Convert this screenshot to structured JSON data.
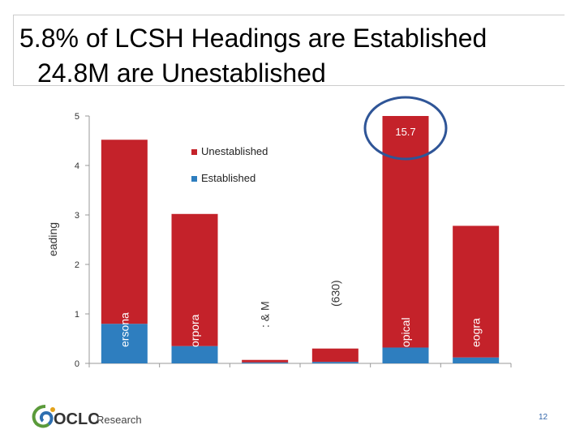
{
  "slide": {
    "title_line_1": "5.8% of LCSH Headings are Established",
    "title_line_2": "24.8M are Unestablished",
    "page_number": "12"
  },
  "logo": {
    "name": "OCLC",
    "suffix": "Research",
    "mark_icon": "oclc-swirl-icon"
  },
  "chart_data": {
    "type": "bar",
    "stacked": true,
    "categories": [
      "ersona",
      "orpora",
      ": & M",
      "(630)",
      "opical",
      "eogra"
    ],
    "series": [
      {
        "name": "Established",
        "color": "#2e7ebf",
        "values": [
          0.8,
          0.35,
          0.02,
          0.03,
          0.32,
          0.12
        ]
      },
      {
        "name": "Unestablished",
        "color": "#c4222a",
        "values": [
          3.72,
          2.67,
          0.05,
          0.27,
          4.68,
          2.66
        ]
      }
    ],
    "ylim": [
      0,
      5
    ],
    "yticks": [
      "0",
      "1",
      "2",
      "3",
      "4",
      "5"
    ],
    "ylabel": "eading",
    "annotation": "15.7",
    "annotated_category": "opical",
    "legend_position": "upper-middle",
    "grid": false
  }
}
